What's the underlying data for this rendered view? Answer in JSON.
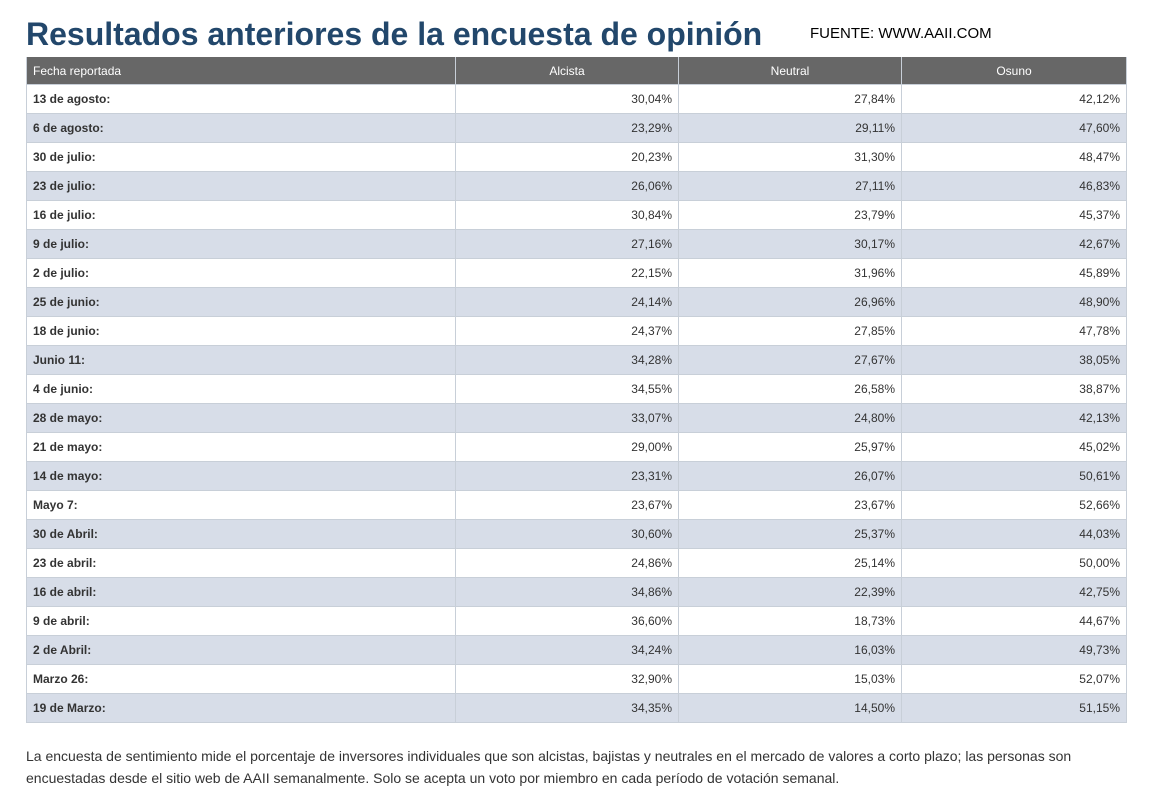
{
  "header": {
    "title": "Resultados anteriores de la encuesta de opinión",
    "source": "FUENTE: WWW.AAII.COM"
  },
  "table": {
    "columns": [
      "Fecha reportada",
      "Alcista",
      "Neutral",
      "Osuno"
    ],
    "rows": [
      {
        "date": "13 de agosto:",
        "bullish": "30,04%",
        "neutral": "27,84%",
        "bearish": "42,12%"
      },
      {
        "date": "6 de agosto:",
        "bullish": "23,29%",
        "neutral": "29,11%",
        "bearish": "47,60%"
      },
      {
        "date": "30 de julio:",
        "bullish": "20,23%",
        "neutral": "31,30%",
        "bearish": "48,47%"
      },
      {
        "date": "23 de julio:",
        "bullish": "26,06%",
        "neutral": "27,11%",
        "bearish": "46,83%"
      },
      {
        "date": "16 de julio:",
        "bullish": "30,84%",
        "neutral": "23,79%",
        "bearish": "45,37%"
      },
      {
        "date": "9 de julio:",
        "bullish": "27,16%",
        "neutral": "30,17%",
        "bearish": "42,67%"
      },
      {
        "date": "2 de julio:",
        "bullish": "22,15%",
        "neutral": "31,96%",
        "bearish": "45,89%"
      },
      {
        "date": "25 de junio:",
        "bullish": "24,14%",
        "neutral": "26,96%",
        "bearish": "48,90%"
      },
      {
        "date": "18 de junio:",
        "bullish": "24,37%",
        "neutral": "27,85%",
        "bearish": "47,78%"
      },
      {
        "date": "Junio 11:",
        "bullish": "34,28%",
        "neutral": "27,67%",
        "bearish": "38,05%"
      },
      {
        "date": "4 de junio:",
        "bullish": "34,55%",
        "neutral": "26,58%",
        "bearish": "38,87%"
      },
      {
        "date": "28 de mayo:",
        "bullish": "33,07%",
        "neutral": "24,80%",
        "bearish": "42,13%"
      },
      {
        "date": "21 de mayo:",
        "bullish": "29,00%",
        "neutral": "25,97%",
        "bearish": "45,02%"
      },
      {
        "date": "14 de mayo:",
        "bullish": "23,31%",
        "neutral": "26,07%",
        "bearish": "50,61%"
      },
      {
        "date": "Mayo 7:",
        "bullish": "23,67%",
        "neutral": "23,67%",
        "bearish": "52,66%"
      },
      {
        "date": "30 de Abril:",
        "bullish": "30,60%",
        "neutral": "25,37%",
        "bearish": "44,03%"
      },
      {
        "date": "23 de abril:",
        "bullish": "24,86%",
        "neutral": "25,14%",
        "bearish": "50,00%"
      },
      {
        "date": "16 de abril:",
        "bullish": "34,86%",
        "neutral": "22,39%",
        "bearish": "42,75%"
      },
      {
        "date": "9 de abril:",
        "bullish": "36,60%",
        "neutral": "18,73%",
        "bearish": "44,67%"
      },
      {
        "date": "2 de Abril:",
        "bullish": "34,24%",
        "neutral": "16,03%",
        "bearish": "49,73%"
      },
      {
        "date": "Marzo 26:",
        "bullish": "32,90%",
        "neutral": "15,03%",
        "bearish": "52,07%"
      },
      {
        "date": "19 de Marzo:",
        "bullish": "34,35%",
        "neutral": "14,50%",
        "bearish": "51,15%"
      }
    ]
  },
  "footnote": "La encuesta de sentimiento mide el porcentaje de inversores individuales que son alcistas, bajistas y neutrales en el mercado de valores a corto plazo; las personas son encuestadas desde el sitio web de AAII semanalmente. Solo se acepta un voto por miembro en cada período de votación semanal.",
  "colors": {
    "title": "#22476b",
    "header_bg": "#676767",
    "row_alt_bg": "#d7dde8",
    "border": "#c8cfd8"
  }
}
